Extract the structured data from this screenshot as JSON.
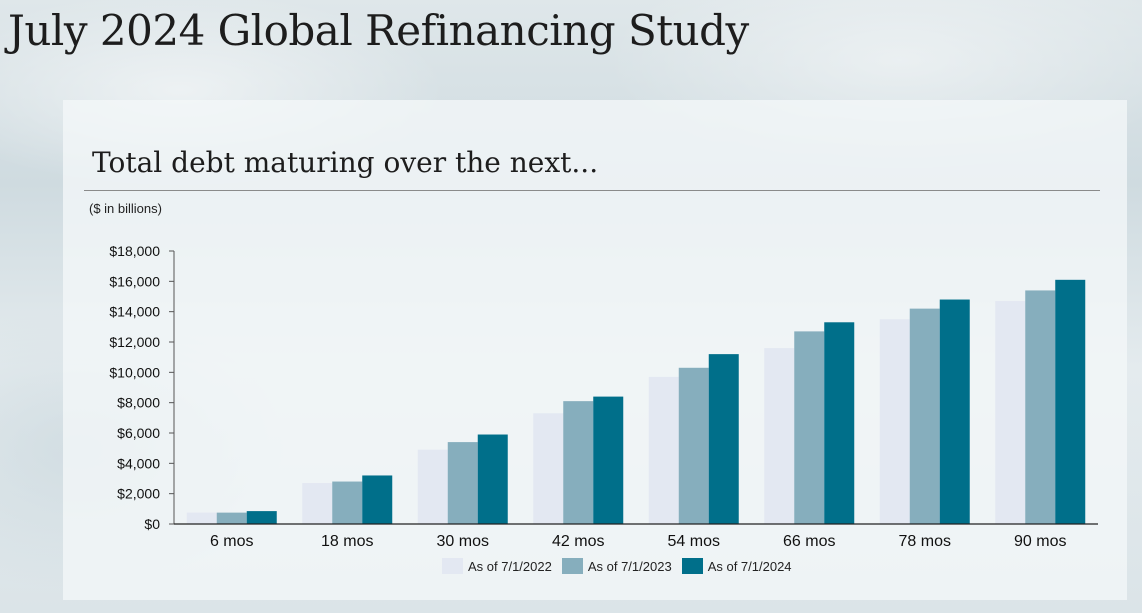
{
  "page": {
    "title": "July 2024 Global Refinancing Study"
  },
  "chart_data": {
    "type": "bar",
    "title": "Total debt maturing over the next...",
    "subtitle": "($ in billions)",
    "xlabel": "",
    "ylabel": "",
    "categories": [
      "6 mos",
      "18 mos",
      "30 mos",
      "42 mos",
      "54 mos",
      "66 mos",
      "78 mos",
      "90 mos"
    ],
    "series": [
      {
        "name": "As of 7/1/2022",
        "color": "#e3e8f2",
        "values": [
          750,
          2700,
          4900,
          7300,
          9700,
          11600,
          13500,
          14700
        ]
      },
      {
        "name": "As of 7/1/2023",
        "color": "#86aebd",
        "values": [
          750,
          2800,
          5400,
          8100,
          10300,
          12700,
          14200,
          15400
        ]
      },
      {
        "name": "As of 7/1/2024",
        "color": "#006f8a",
        "values": [
          850,
          3200,
          5900,
          8400,
          11200,
          13300,
          14800,
          16100
        ]
      }
    ],
    "ylim": [
      0,
      18000
    ],
    "yticks": [
      0,
      2000,
      4000,
      6000,
      8000,
      10000,
      12000,
      14000,
      16000,
      18000
    ],
    "ytick_labels": [
      "$0",
      "$2,000",
      "$4,000",
      "$6,000",
      "$8,000",
      "$10,000",
      "$12,000",
      "$14,000",
      "$16,000",
      "$18,000"
    ],
    "grid": false,
    "legend_position": "bottom-center"
  }
}
